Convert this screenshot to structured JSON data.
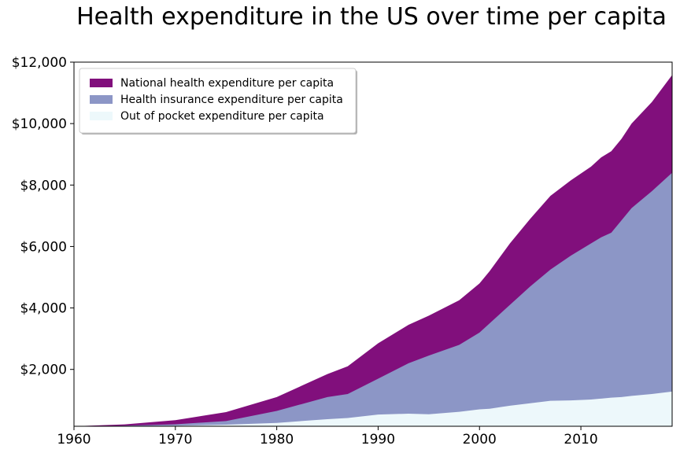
{
  "chart_data": {
    "type": "area",
    "title": "Health expenditure in the US over time per capita",
    "xlabel": "",
    "ylabel": "",
    "xlim": [
      1960,
      2019
    ],
    "ylim": [
      150,
      12000
    ],
    "x_ticks": [
      1960,
      1970,
      1980,
      1990,
      2000,
      2010
    ],
    "x_tick_labels": [
      "1960",
      "1970",
      "1980",
      "1990",
      "2000",
      "2010"
    ],
    "y_ticks": [
      2000,
      4000,
      6000,
      8000,
      10000,
      12000
    ],
    "y_tick_labels": [
      "$2,000",
      "$4,000",
      "$6,000",
      "$8,000",
      "$10,000",
      "$12,000"
    ],
    "grid": false,
    "legend_position": "top-left",
    "x": [
      1960,
      1965,
      1970,
      1975,
      1980,
      1985,
      1987,
      1990,
      1993,
      1995,
      1998,
      2000,
      2001,
      2003,
      2005,
      2007,
      2009,
      2011,
      2012,
      2013,
      2014,
      2015,
      2017,
      2019
    ],
    "series": [
      {
        "name": "National health expenditure per capita",
        "color": "#810f7c",
        "values": [
          150,
          210,
          350,
          610,
          1100,
          1850,
          2100,
          2850,
          3450,
          3750,
          4250,
          4800,
          5200,
          6100,
          6900,
          7650,
          8150,
          8600,
          8900,
          9100,
          9500,
          10000,
          10700,
          11580
        ]
      },
      {
        "name": "Health insurance expenditure per capita",
        "color": "#8c96c6",
        "values": [
          150,
          170,
          215,
          320,
          650,
          1100,
          1200,
          1700,
          2200,
          2450,
          2800,
          3200,
          3500,
          4100,
          4700,
          5250,
          5700,
          6100,
          6300,
          6450,
          6850,
          7250,
          7800,
          8400
        ]
      },
      {
        "name": "Out of pocket expenditure per capita",
        "color": "#edf8fb",
        "values": [
          150,
          155,
          170,
          200,
          260,
          380,
          420,
          530,
          560,
          540,
          620,
          700,
          720,
          820,
          900,
          980,
          990,
          1020,
          1050,
          1080,
          1100,
          1140,
          1200,
          1280
        ]
      }
    ]
  }
}
